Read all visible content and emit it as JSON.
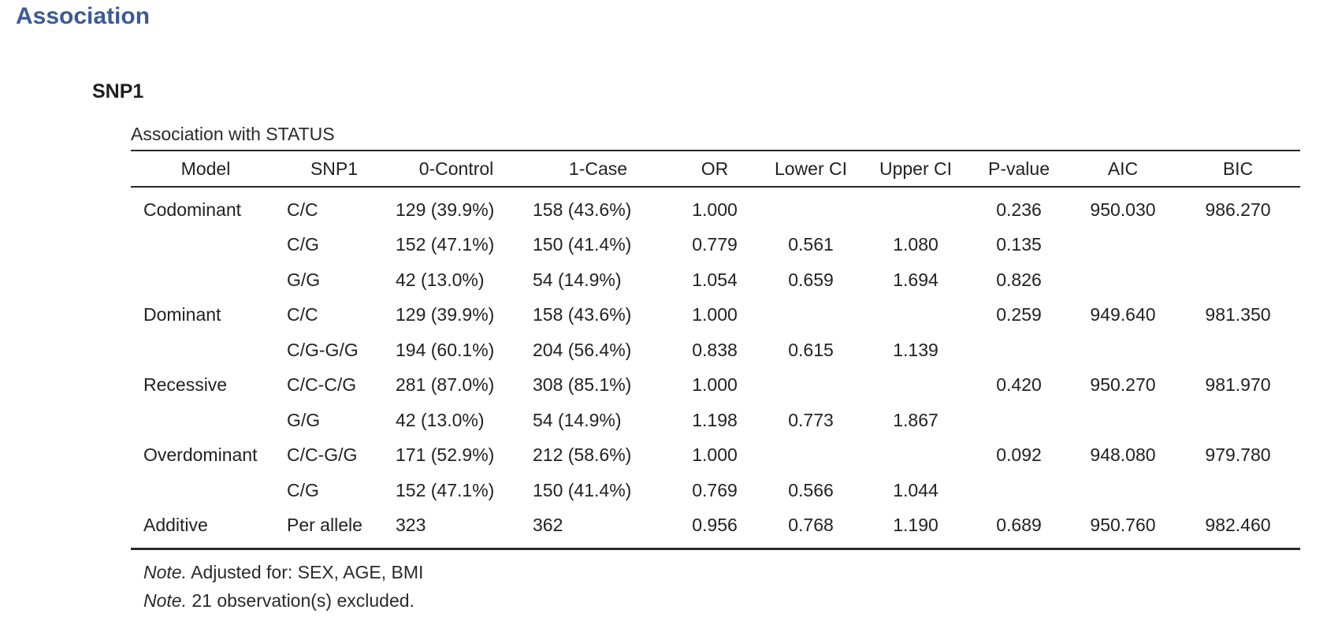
{
  "page_title": "Association",
  "section_title": "SNP1",
  "table": {
    "caption": "Association with STATUS",
    "headers": [
      "Model",
      "SNP1",
      "0-Control",
      "1-Case",
      "OR",
      "Lower CI",
      "Upper CI",
      "P-value",
      "AIC",
      "BIC"
    ],
    "rows": [
      {
        "model": "Codominant",
        "genotype": "C/C",
        "control": "129 (39.9%)",
        "case": "158 (43.6%)",
        "or": "1.000",
        "lower_ci": "",
        "upper_ci": "",
        "p_value": "0.236",
        "aic": "950.030",
        "bic": "986.270"
      },
      {
        "model": "",
        "genotype": "C/G",
        "control": "152 (47.1%)",
        "case": "150 (41.4%)",
        "or": "0.779",
        "lower_ci": "0.561",
        "upper_ci": "1.080",
        "p_value": "0.135",
        "aic": "",
        "bic": ""
      },
      {
        "model": "",
        "genotype": "G/G",
        "control": "42 (13.0%)",
        "case": "54 (14.9%)",
        "or": "1.054",
        "lower_ci": "0.659",
        "upper_ci": "1.694",
        "p_value": "0.826",
        "aic": "",
        "bic": ""
      },
      {
        "model": "Dominant",
        "genotype": "C/C",
        "control": "129 (39.9%)",
        "case": "158 (43.6%)",
        "or": "1.000",
        "lower_ci": "",
        "upper_ci": "",
        "p_value": "0.259",
        "aic": "949.640",
        "bic": "981.350"
      },
      {
        "model": "",
        "genotype": "C/G-G/G",
        "control": "194 (60.1%)",
        "case": "204 (56.4%)",
        "or": "0.838",
        "lower_ci": "0.615",
        "upper_ci": "1.139",
        "p_value": "",
        "aic": "",
        "bic": ""
      },
      {
        "model": "Recessive",
        "genotype": "C/C-C/G",
        "control": "281 (87.0%)",
        "case": "308 (85.1%)",
        "or": "1.000",
        "lower_ci": "",
        "upper_ci": "",
        "p_value": "0.420",
        "aic": "950.270",
        "bic": "981.970"
      },
      {
        "model": "",
        "genotype": "G/G",
        "control": "42 (13.0%)",
        "case": "54 (14.9%)",
        "or": "1.198",
        "lower_ci": "0.773",
        "upper_ci": "1.867",
        "p_value": "",
        "aic": "",
        "bic": ""
      },
      {
        "model": "Overdominant",
        "genotype": "C/C-G/G",
        "control": "171 (52.9%)",
        "case": "212 (58.6%)",
        "or": "1.000",
        "lower_ci": "",
        "upper_ci": "",
        "p_value": "0.092",
        "aic": "948.080",
        "bic": "979.780"
      },
      {
        "model": "",
        "genotype": "C/G",
        "control": "152 (47.1%)",
        "case": "150 (41.4%)",
        "or": "0.769",
        "lower_ci": "0.566",
        "upper_ci": "1.044",
        "p_value": "",
        "aic": "",
        "bic": ""
      },
      {
        "model": "Additive",
        "genotype": "Per allele",
        "control": "323",
        "case": "362",
        "or": "0.956",
        "lower_ci": "0.768",
        "upper_ci": "1.190",
        "p_value": "0.689",
        "aic": "950.760",
        "bic": "982.460"
      }
    ]
  },
  "notes": [
    {
      "label": "Note.",
      "text": "Adjusted for: SEX, AGE, BMI"
    },
    {
      "label": "Note.",
      "text": "21 observation(s) excluded."
    }
  ]
}
